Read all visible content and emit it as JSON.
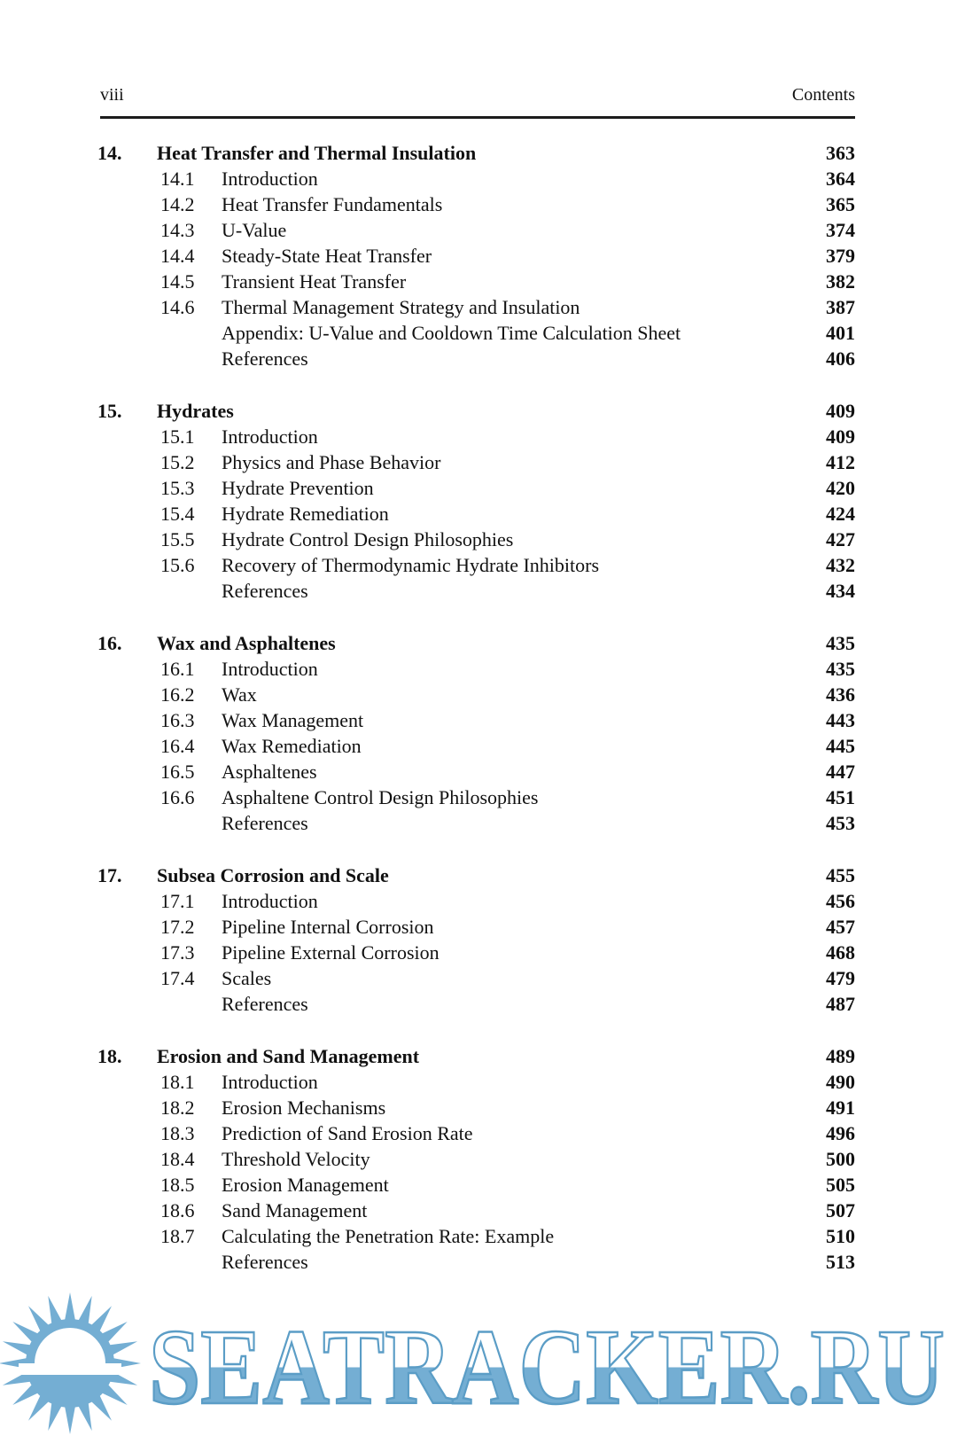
{
  "page": {
    "folio": "viii",
    "running_head": "Contents"
  },
  "toc": {
    "chapters": [
      {
        "number": "14.",
        "title": "Heat Transfer and Thermal Insulation",
        "page": "363",
        "entries": [
          {
            "number": "14.1",
            "title": "Introduction",
            "page": "364"
          },
          {
            "number": "14.2",
            "title": "Heat Transfer Fundamentals",
            "page": "365"
          },
          {
            "number": "14.3",
            "title": "U-Value",
            "page": "374"
          },
          {
            "number": "14.4",
            "title": "Steady-State Heat Transfer",
            "page": "379"
          },
          {
            "number": "14.5",
            "title": "Transient Heat Transfer",
            "page": "382"
          },
          {
            "number": "14.6",
            "title": "Thermal Management Strategy and Insulation",
            "page": "387"
          },
          {
            "number": "",
            "title": "Appendix: U-Value and Cooldown Time Calculation Sheet",
            "page": "401"
          },
          {
            "number": "",
            "title": "References",
            "page": "406"
          }
        ]
      },
      {
        "number": "15.",
        "title": "Hydrates",
        "page": "409",
        "entries": [
          {
            "number": "15.1",
            "title": "Introduction",
            "page": "409"
          },
          {
            "number": "15.2",
            "title": "Physics and Phase Behavior",
            "page": "412"
          },
          {
            "number": "15.3",
            "title": "Hydrate Prevention",
            "page": "420"
          },
          {
            "number": "15.4",
            "title": "Hydrate Remediation",
            "page": "424"
          },
          {
            "number": "15.5",
            "title": "Hydrate Control Design Philosophies",
            "page": "427"
          },
          {
            "number": "15.6",
            "title": "Recovery of Thermodynamic Hydrate Inhibitors",
            "page": "432"
          },
          {
            "number": "",
            "title": "References",
            "page": "434"
          }
        ]
      },
      {
        "number": "16.",
        "title": "Wax and Asphaltenes",
        "page": "435",
        "entries": [
          {
            "number": "16.1",
            "title": "Introduction",
            "page": "435"
          },
          {
            "number": "16.2",
            "title": "Wax",
            "page": "436"
          },
          {
            "number": "16.3",
            "title": "Wax Management",
            "page": "443"
          },
          {
            "number": "16.4",
            "title": "Wax Remediation",
            "page": "445"
          },
          {
            "number": "16.5",
            "title": "Asphaltenes",
            "page": "447"
          },
          {
            "number": "16.6",
            "title": "Asphaltene Control Design Philosophies",
            "page": "451"
          },
          {
            "number": "",
            "title": "References",
            "page": "453"
          }
        ]
      },
      {
        "number": "17.",
        "title": "Subsea Corrosion and Scale",
        "page": "455",
        "entries": [
          {
            "number": "17.1",
            "title": "Introduction",
            "page": "456"
          },
          {
            "number": "17.2",
            "title": "Pipeline Internal Corrosion",
            "page": "457"
          },
          {
            "number": "17.3",
            "title": "Pipeline External Corrosion",
            "page": "468"
          },
          {
            "number": "17.4",
            "title": "Scales",
            "page": "479"
          },
          {
            "number": "",
            "title": "References",
            "page": "487"
          }
        ]
      },
      {
        "number": "18.",
        "title": "Erosion and Sand Management",
        "page": "489",
        "entries": [
          {
            "number": "18.1",
            "title": "Introduction",
            "page": "490"
          },
          {
            "number": "18.2",
            "title": "Erosion Mechanisms",
            "page": "491"
          },
          {
            "number": "18.3",
            "title": "Prediction of Sand Erosion Rate",
            "page": "496"
          },
          {
            "number": "18.4",
            "title": "Threshold Velocity",
            "page": "500"
          },
          {
            "number": "18.5",
            "title": "Erosion Management",
            "page": "505"
          },
          {
            "number": "18.6",
            "title": "Sand Management",
            "page": "507"
          },
          {
            "number": "18.7",
            "title": "Calculating the Penetration Rate: Example",
            "page": "510"
          },
          {
            "number": "",
            "title": "References",
            "page": "513"
          }
        ]
      }
    ]
  },
  "watermark": {
    "text": "SEATRACKER.RU",
    "fill_color": "#74aed3",
    "stroke_color": "#5b9dc6"
  }
}
